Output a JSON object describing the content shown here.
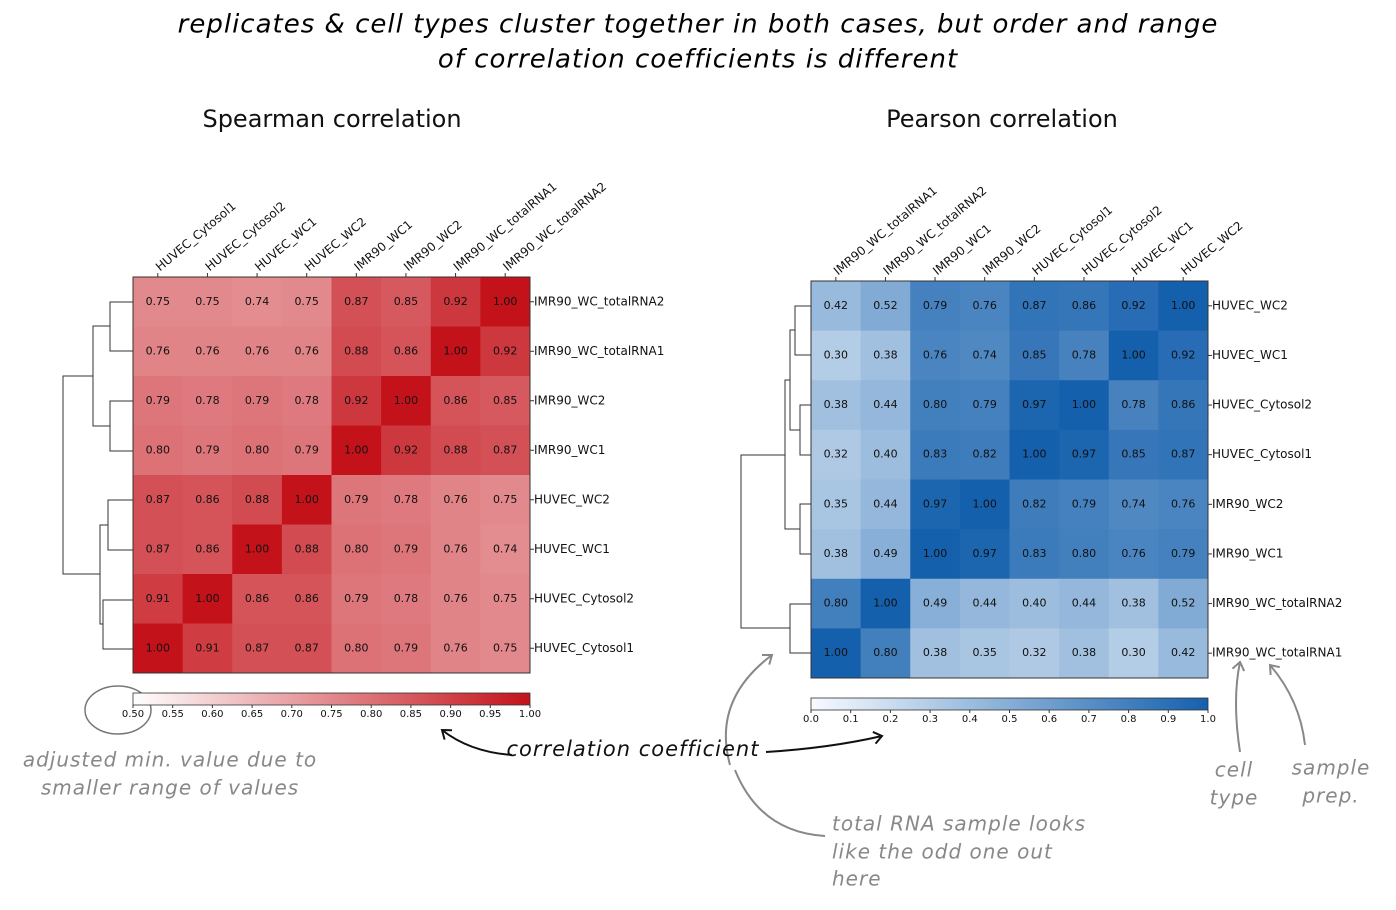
{
  "title": [
    "replicates & cell types cluster together in both cases, but order and range",
    "of correlation coefficients is different"
  ],
  "annotations": [
    [
      "adjusted min. value due to",
      "smaller range of values"
    ],
    [
      "correlation coefficient"
    ],
    [
      "total RNA sample looks",
      "like the odd one out",
      "here"
    ],
    [
      "cell",
      "type"
    ],
    [
      "sample",
      "prep."
    ]
  ],
  "chart_data": [
    {
      "type": "heatmap",
      "title": "Spearman correlation",
      "columns": [
        "HUVEC_Cytosol1",
        "HUVEC_Cytosol2",
        "HUVEC_WC1",
        "HUVEC_WC2",
        "IMR90_WC1",
        "IMR90_WC2",
        "IMR90_WC_totalRNA1",
        "IMR90_WC_totalRNA2"
      ],
      "rows": [
        "IMR90_WC_totalRNA2",
        "IMR90_WC_totalRNA1",
        "IMR90_WC2",
        "IMR90_WC1",
        "HUVEC_WC2",
        "HUVEC_WC1",
        "HUVEC_Cytosol2",
        "HUVEC_Cytosol1"
      ],
      "values": [
        [
          0.75,
          0.75,
          0.74,
          0.75,
          0.87,
          0.85,
          0.92,
          1
        ],
        [
          0.76,
          0.76,
          0.76,
          0.76,
          0.88,
          0.86,
          1,
          0.92
        ],
        [
          0.79,
          0.78,
          0.79,
          0.78,
          0.92,
          1,
          0.86,
          0.85
        ],
        [
          0.8,
          0.79,
          0.8,
          0.79,
          1,
          0.92,
          0.88,
          0.87
        ],
        [
          0.87,
          0.86,
          0.88,
          1,
          0.79,
          0.78,
          0.76,
          0.75
        ],
        [
          0.87,
          0.86,
          1,
          0.88,
          0.8,
          0.79,
          0.76,
          0.74
        ],
        [
          0.91,
          1,
          0.86,
          0.86,
          0.79,
          0.78,
          0.76,
          0.75
        ],
        [
          1,
          0.91,
          0.87,
          0.87,
          0.8,
          0.79,
          0.76,
          0.75
        ]
      ],
      "value_labels": [
        [
          "0.75",
          "0.75",
          "0.74",
          "0.75",
          "0.87",
          "0.85",
          "0.92",
          "1.00"
        ],
        [
          "0.76",
          "0.76",
          "0.76",
          "0.76",
          "0.88",
          "0.86",
          "1.00",
          "0.92"
        ],
        [
          "0.79",
          "0.78",
          "0.79",
          "0.78",
          "0.92",
          "1.00",
          "0.86",
          "0.85"
        ],
        [
          "0.80",
          "0.79",
          "0.80",
          "0.79",
          "1.00",
          "0.92",
          "0.88",
          "0.87"
        ],
        [
          "0.87",
          "0.86",
          "0.88",
          "1.00",
          "0.79",
          "0.78",
          "0.76",
          "0.75"
        ],
        [
          "0.87",
          "0.86",
          "1.00",
          "0.88",
          "0.80",
          "0.79",
          "0.76",
          "0.74"
        ],
        [
          "0.91",
          "1.00",
          "0.86",
          "0.86",
          "0.79",
          "0.78",
          "0.76",
          "0.75"
        ],
        [
          "1.00",
          "0.91",
          "0.87",
          "0.87",
          "0.80",
          "0.79",
          "0.76",
          "0.75"
        ]
      ],
      "colormap": [
        "#ffffff",
        "#c4121a"
      ],
      "zlim": [
        0.5,
        1
      ],
      "zticks": [
        {
          "value": 0.5,
          "label": "0.50"
        },
        0.55,
        {
          "value": 0.6,
          "label": "0.60"
        },
        0.65,
        {
          "value": 0.7,
          "label": "0.70"
        },
        0.75,
        {
          "value": 0.8,
          "label": "0.80"
        },
        0.85,
        {
          "value": 0.9,
          "label": "0.90"
        },
        0.95,
        {
          "value": 1,
          "label": "1.00"
        }
      ]
    },
    {
      "type": "heatmap",
      "title": "Pearson correlation",
      "columns": [
        "IMR90_WC_totalRNA1",
        "IMR90_WC_totalRNA2",
        "IMR90_WC1",
        "IMR90_WC2",
        "HUVEC_Cytosol1",
        "HUVEC_Cytosol2",
        "HUVEC_WC1",
        "HUVEC_WC2"
      ],
      "rows": [
        "HUVEC_WC2",
        "HUVEC_WC1",
        "HUVEC_Cytosol2",
        "HUVEC_Cytosol1",
        "IMR90_WC2",
        "IMR90_WC1",
        "IMR90_WC_totalRNA2",
        "IMR90_WC_totalRNA1"
      ],
      "values": [
        [
          0.42,
          0.52,
          0.79,
          0.76,
          0.87,
          0.86,
          0.92,
          1
        ],
        [
          0.3,
          0.38,
          0.76,
          0.74,
          0.85,
          0.78,
          1,
          0.92
        ],
        [
          0.38,
          0.44,
          0.8,
          0.79,
          0.97,
          1,
          0.78,
          0.86
        ],
        [
          0.32,
          0.4,
          0.83,
          0.82,
          1,
          0.97,
          0.85,
          0.87
        ],
        [
          0.35,
          0.44,
          0.97,
          1,
          0.82,
          0.79,
          0.74,
          0.76
        ],
        [
          0.38,
          0.49,
          1,
          0.97,
          0.83,
          0.8,
          0.76,
          0.79
        ],
        [
          0.8,
          1,
          0.49,
          0.44,
          0.4,
          0.44,
          0.38,
          0.52
        ],
        [
          1,
          0.8,
          0.38,
          0.35,
          0.32,
          0.38,
          0.3,
          0.42
        ]
      ],
      "value_labels": [
        [
          "0.42",
          "0.52",
          "0.79",
          "0.76",
          "0.87",
          "0.86",
          "0.92",
          "1.00"
        ],
        [
          "0.30",
          "0.38",
          "0.76",
          "0.74",
          "0.85",
          "0.78",
          "1.00",
          "0.92"
        ],
        [
          "0.38",
          "0.44",
          "0.80",
          "0.79",
          "0.97",
          "1.00",
          "0.78",
          "0.86"
        ],
        [
          "0.32",
          "0.40",
          "0.83",
          "0.82",
          "1.00",
          "0.97",
          "0.85",
          "0.87"
        ],
        [
          "0.35",
          "0.44",
          "0.97",
          "1.00",
          "0.82",
          "0.79",
          "0.74",
          "0.76"
        ],
        [
          "0.38",
          "0.49",
          "1.00",
          "0.97",
          "0.83",
          "0.80",
          "0.76",
          "0.79"
        ],
        [
          "0.80",
          "1.00",
          "0.49",
          "0.44",
          "0.40",
          "0.44",
          "0.38",
          "0.52"
        ],
        [
          "1.00",
          "0.80",
          "0.38",
          "0.35",
          "0.32",
          "0.38",
          "0.30",
          "0.42"
        ]
      ],
      "colormap": [
        "#f7fbff",
        "#1560ad"
      ],
      "zlim": [
        0,
        1
      ],
      "zticks": [
        {
          "value": 0,
          "label": "0.0"
        },
        0.1,
        0.2,
        0.3,
        0.4,
        0.5,
        0.6,
        0.7,
        0.8,
        0.9,
        {
          "value": 1,
          "label": "1.0"
        }
      ]
    }
  ]
}
